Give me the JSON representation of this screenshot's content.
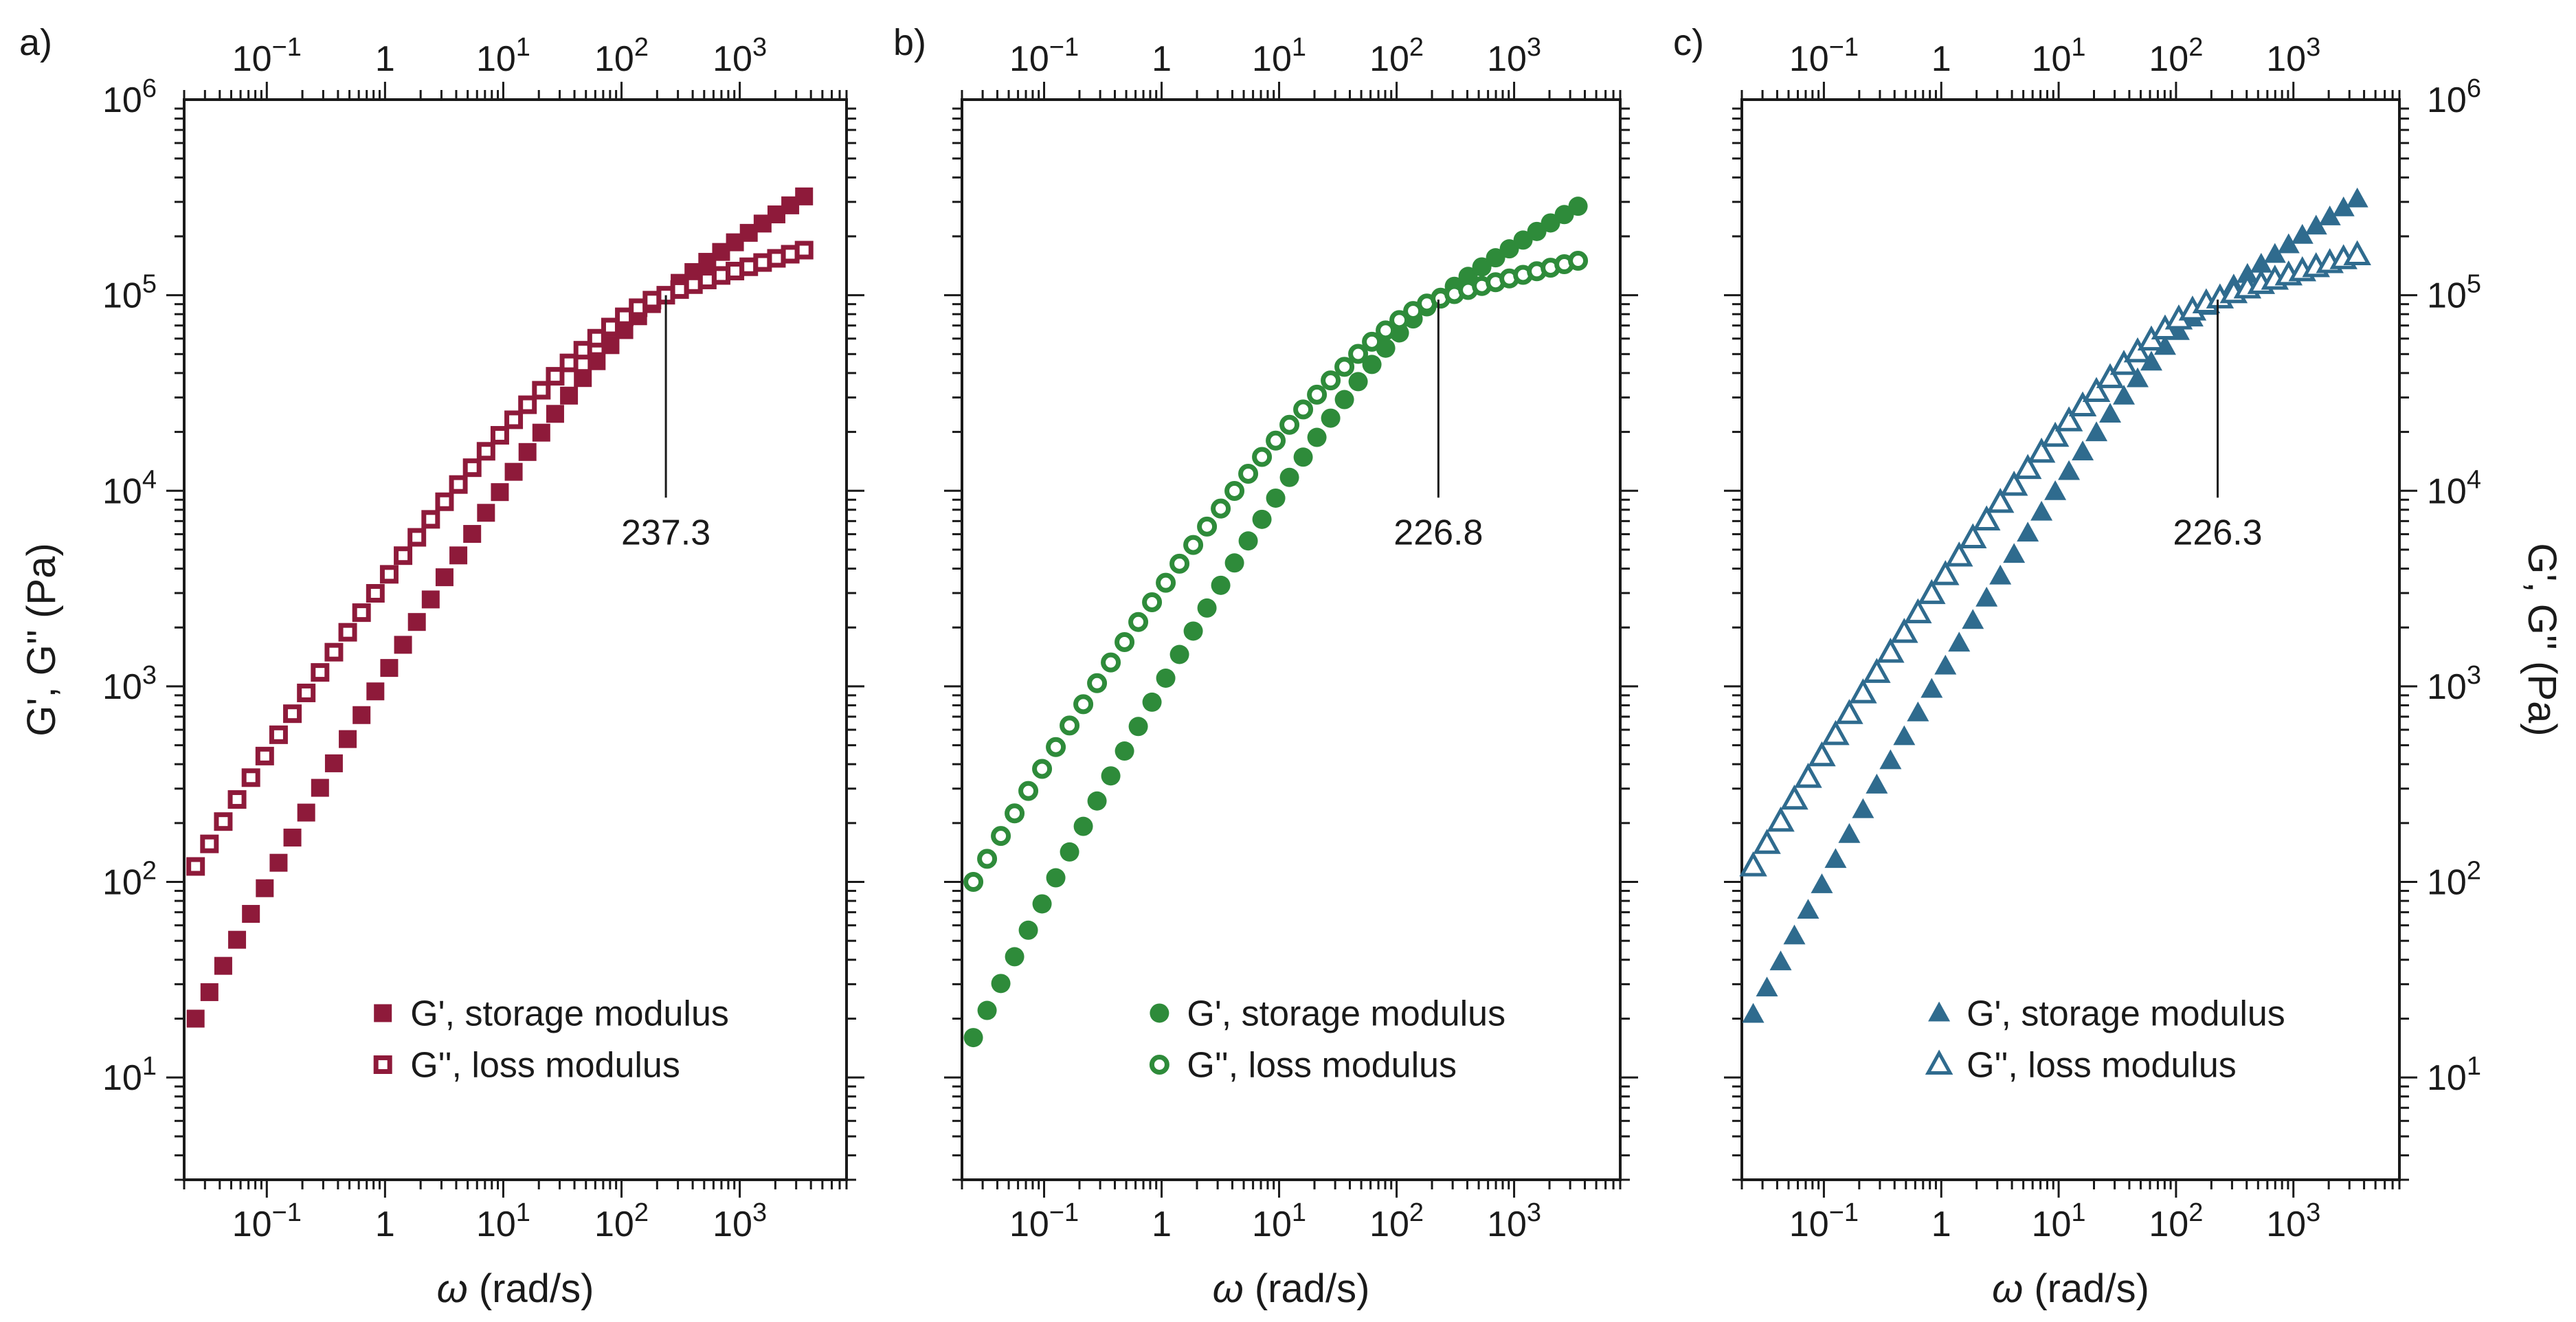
{
  "chart_data": [
    {
      "type": "scatter",
      "panel_label": "a)",
      "color": "#8e1a3a",
      "marker": "square",
      "xlabel_symbol": "ω",
      "xlabel_unit": " (rad/s)",
      "ylabel": "G', G'' (Pa)",
      "xscale": "log",
      "yscale": "log",
      "xlim": [
        0.02,
        8000
      ],
      "ylim": [
        3,
        1000000
      ],
      "x_ticks": [
        0.1,
        1,
        10,
        100,
        1000
      ],
      "y_ticks": [
        10,
        100,
        1000,
        10000,
        100000,
        1000000
      ],
      "legend_position": "bottom-right",
      "crossover": {
        "x": 237.3,
        "y": 100000,
        "label": "237.3"
      },
      "series": [
        {
          "name": "G', storage modulus",
          "fill": "filled",
          "g_start": 20,
          "g_end": 320000,
          "mode": "storage"
        },
        {
          "name": "G'', loss modulus",
          "fill": "hollow",
          "g_start": 120,
          "g_end": 170000,
          "mode": "loss"
        }
      ]
    },
    {
      "type": "scatter",
      "panel_label": "b)",
      "color": "#2e8b3a",
      "marker": "circle",
      "xlabel_symbol": "ω",
      "xlabel_unit": " (rad/s)",
      "ylabel": "",
      "xscale": "log",
      "yscale": "log",
      "xlim": [
        0.02,
        8000
      ],
      "ylim": [
        3,
        1000000
      ],
      "x_ticks": [
        0.1,
        1,
        10,
        100,
        1000
      ],
      "y_ticks": [
        10,
        100,
        1000,
        10000,
        100000,
        1000000
      ],
      "legend_position": "bottom-right",
      "crossover": {
        "x": 226.8,
        "y": 95000,
        "label": "226.8"
      },
      "series": [
        {
          "name": "G', storage modulus",
          "fill": "filled",
          "g_start": 16,
          "g_end": 285000,
          "mode": "storage"
        },
        {
          "name": "G'', loss modulus",
          "fill": "hollow",
          "g_start": 100,
          "g_end": 150000,
          "mode": "loss"
        }
      ]
    },
    {
      "type": "scatter",
      "panel_label": "c)",
      "color": "#2f6b8e",
      "marker": "triangle",
      "xlabel_symbol": "ω",
      "xlabel_unit": " (rad/s)",
      "ylabel": "G', G'' (Pa)",
      "xscale": "log",
      "yscale": "log",
      "xlim": [
        0.02,
        8000
      ],
      "ylim": [
        3,
        1000000
      ],
      "x_ticks": [
        0.1,
        1,
        10,
        100,
        1000
      ],
      "y_ticks": [
        10,
        100,
        1000,
        10000,
        100000,
        1000000
      ],
      "legend_position": "bottom-right",
      "crossover": {
        "x": 226.3,
        "y": 95000,
        "label": "226.3"
      },
      "series": [
        {
          "name": "G', storage modulus",
          "fill": "filled",
          "g_start": 21,
          "g_end": 310000,
          "mode": "storage"
        },
        {
          "name": "G'', loss modulus",
          "fill": "hollow",
          "g_start": 120,
          "g_end": 160000,
          "mode": "loss"
        }
      ]
    }
  ]
}
